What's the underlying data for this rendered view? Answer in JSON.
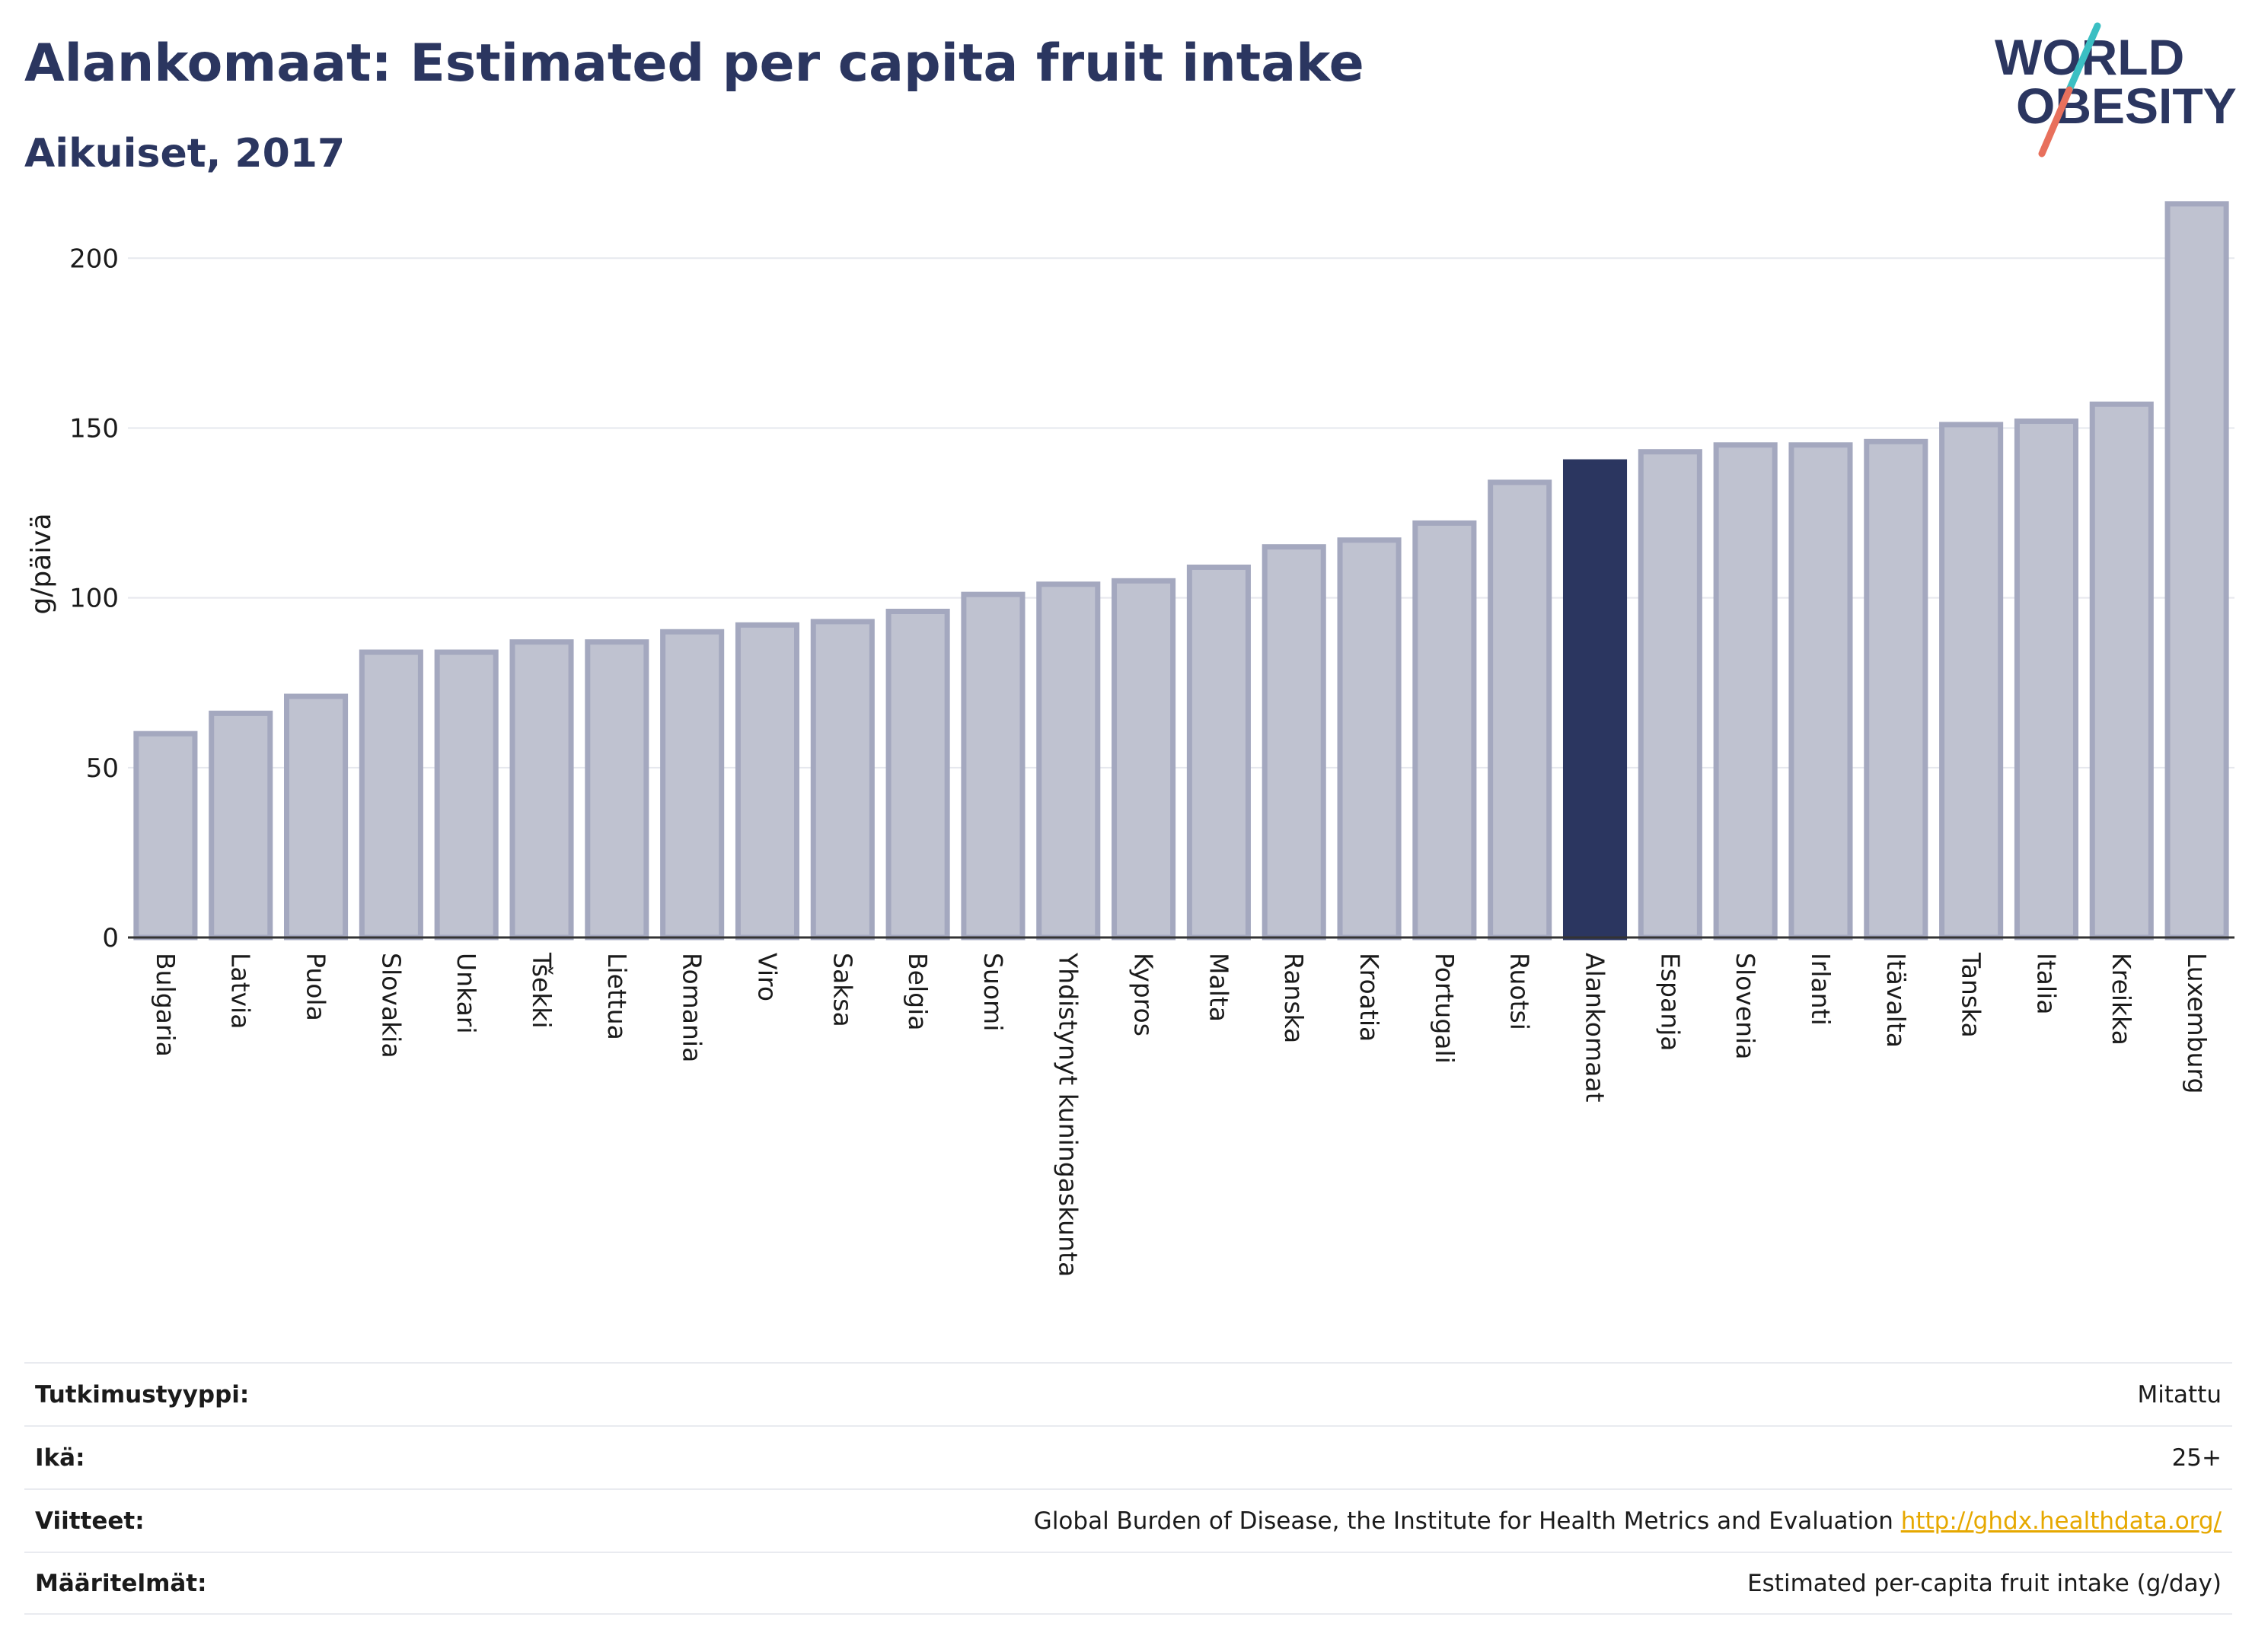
{
  "header": {
    "title": "Alankomaat: Estimated per capita fruit intake",
    "subtitle": "Aikuiset, 2017"
  },
  "logo": {
    "line1": "WORLD",
    "line2": "OBESITY",
    "colors": {
      "text": "#2b3660",
      "slash_top": "#3bbfc3",
      "slash_bottom": "#e8705c"
    }
  },
  "chart_data": {
    "type": "bar",
    "title": "Alankomaat: Estimated per capita fruit intake",
    "subtitle": "Aikuiset, 2017",
    "ylabel": "g/päivä",
    "xlabel": "",
    "ylim": [
      0,
      220
    ],
    "yticks": [
      0,
      50,
      100,
      150,
      200
    ],
    "grid": true,
    "highlight": "Alankomaat",
    "colors": {
      "bar": "#bfc2d0",
      "bar_border": "#a4a8bf",
      "highlight": "#2b3660"
    },
    "categories": [
      "Bulgaria",
      "Latvia",
      "Puola",
      "Slovakia",
      "Unkari",
      "Tšekki",
      "Liettua",
      "Romania",
      "Viro",
      "Saksa",
      "Belgia",
      "Suomi",
      "Yhdistynyt kuningaskunta",
      "Kypros",
      "Malta",
      "Ranska",
      "Kroatia",
      "Portugali",
      "Ruotsi",
      "Alankomaat",
      "Espanja",
      "Slovenia",
      "Irlanti",
      "Itävalta",
      "Tanska",
      "Italia",
      "Kreikka",
      "Luxemburg"
    ],
    "values": [
      60,
      66,
      71,
      84,
      84,
      87,
      87,
      90,
      92,
      93,
      96,
      101,
      104,
      105,
      109,
      115,
      117,
      122,
      134,
      140,
      143,
      145,
      145,
      146,
      151,
      152,
      157,
      216
    ]
  },
  "meta": [
    {
      "label": "Tutkimustyyppi:",
      "value": "Mitattu"
    },
    {
      "label": "Ikä:",
      "value": "25+"
    },
    {
      "label": "Viitteet:",
      "value": "Global Burden of Disease, the Institute for Health Metrics and Evaluation",
      "link": "http://ghdx.healthdata.org/"
    },
    {
      "label": "Määritelmät:",
      "value": "Estimated per-capita fruit intake (g/day)"
    }
  ]
}
